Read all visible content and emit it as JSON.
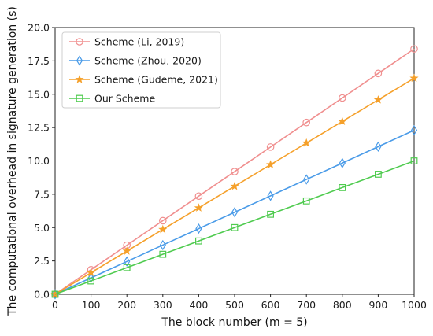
{
  "chart_data": {
    "type": "line",
    "xlabel": "The block number (m = 5)",
    "ylabel": "The computational overhead in signature generation (s)",
    "xlim": [
      0,
      1000
    ],
    "ylim": [
      0,
      20
    ],
    "xticks": [
      0,
      100,
      200,
      300,
      400,
      500,
      600,
      700,
      800,
      900,
      1000
    ],
    "yticks": [
      0.0,
      2.5,
      5.0,
      7.5,
      10.0,
      12.5,
      15.0,
      17.5,
      20.0
    ],
    "ytick_labels": [
      "0.0",
      "2.5",
      "5.0",
      "7.5",
      "10.0",
      "12.5",
      "15.0",
      "17.5",
      "20.0"
    ],
    "x": [
      0,
      100,
      200,
      300,
      400,
      500,
      600,
      700,
      800,
      900,
      1000
    ],
    "grid": false,
    "legend_position": "top-left",
    "series": [
      {
        "name": "Scheme (Li,  2019)",
        "color": "#f08f8f",
        "marker": "circle",
        "values": [
          0,
          1.84,
          3.68,
          5.52,
          7.36,
          9.2,
          11.04,
          12.88,
          14.72,
          16.56,
          18.4
        ]
      },
      {
        "name": "Scheme (Zhou, 2020)",
        "color": "#4a9be8",
        "marker": "diamond",
        "values": [
          0,
          1.23,
          2.46,
          3.69,
          4.92,
          6.15,
          7.38,
          8.61,
          9.84,
          11.07,
          12.3
        ]
      },
      {
        "name": "Scheme (Gudeme, 2021)",
        "color": "#f5a02a",
        "marker": "star",
        "values": [
          0,
          1.62,
          3.24,
          4.86,
          6.48,
          8.1,
          9.72,
          11.34,
          12.96,
          14.58,
          16.2
        ]
      },
      {
        "name": "Our Scheme",
        "color": "#4fcb4f",
        "marker": "square",
        "values": [
          0,
          1.0,
          2.0,
          3.0,
          4.0,
          5.0,
          6.0,
          7.0,
          8.0,
          9.0,
          10.0
        ]
      }
    ]
  }
}
